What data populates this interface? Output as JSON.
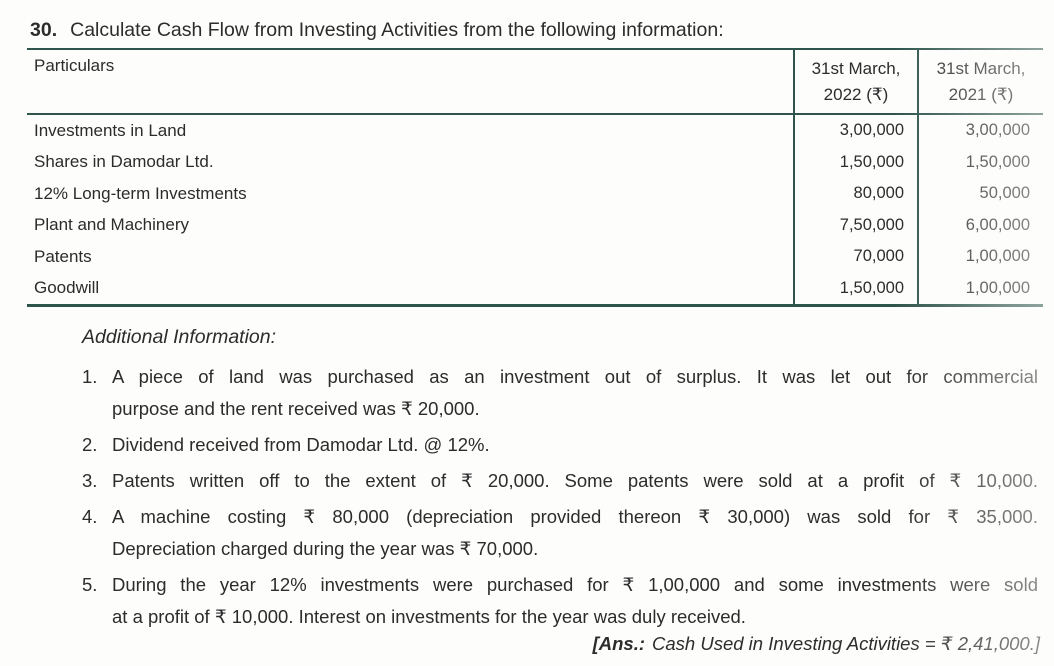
{
  "colors": {
    "table_rule": "#2e544b",
    "text": "#2c2c2c"
  },
  "question": {
    "number": "30.",
    "text": "Calculate Cash Flow from Investing Activities from the following information:"
  },
  "table": {
    "headers": {
      "particulars": "Particulars",
      "march_2022_line1": "31st March,",
      "march_2022_line2": "2022 (₹)",
      "march_2021_line1": "31st March,",
      "march_2021_line2": "2021 (₹)"
    },
    "rows": [
      {
        "particulars": "Investments in Land",
        "amount_2022": "3,00,000",
        "amount_2021": "3,00,000"
      },
      {
        "particulars": "Shares in Damodar Ltd.",
        "amount_2022": "1,50,000",
        "amount_2021": "1,50,000"
      },
      {
        "particulars": "12% Long-term Investments",
        "amount_2022": "80,000",
        "amount_2021": "50,000"
      },
      {
        "particulars": "Plant and Machinery",
        "amount_2022": "7,50,000",
        "amount_2021": "6,00,000"
      },
      {
        "particulars": "Patents",
        "amount_2022": "70,000",
        "amount_2021": "1,00,000"
      },
      {
        "particulars": "Goodwill",
        "amount_2022": "1,50,000",
        "amount_2021": "1,00,000"
      }
    ]
  },
  "additional_info": {
    "heading": "Additional Information:",
    "items": [
      {
        "number": "1.",
        "lines": [
          "A piece of land was purchased as an investment out of surplus. It was let out for commercial",
          "purpose and the rent received was ₹ 20,000."
        ]
      },
      {
        "number": "2.",
        "lines": [
          "Dividend received from Damodar Ltd. @ 12%."
        ]
      },
      {
        "number": "3.",
        "lines": [
          "Patents written off to the extent of ₹ 20,000. Some patents were sold at a profit of ₹ 10,000."
        ]
      },
      {
        "number": "4.",
        "lines": [
          "A machine costing ₹ 80,000 (depreciation provided thereon ₹ 30,000) was sold for ₹ 35,000.",
          "Depreciation charged during the year was ₹ 70,000."
        ]
      },
      {
        "number": "5.",
        "lines": [
          "During the year 12% investments were purchased for ₹ 1,00,000 and some investments were sold",
          "at a profit of ₹ 10,000. Interest on investments for the year was duly received."
        ]
      }
    ]
  },
  "answer": {
    "prefix": "[Ans.:",
    "text": "Cash Used in Investing Activities = ₹ 2,41,000.]"
  }
}
